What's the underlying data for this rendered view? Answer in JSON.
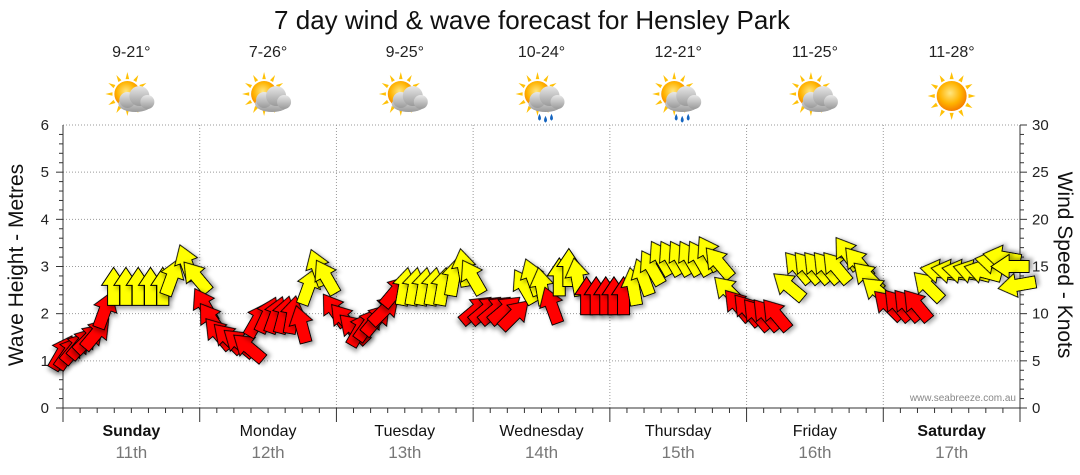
{
  "chart_data": {
    "type": "line",
    "title": "7 day wind & wave forecast for Hensley Park",
    "ylabel_left": "Wave Height - Metres",
    "ylabel_right": "Wind Speed - Knots",
    "ylim_left": [
      0,
      6
    ],
    "ylim_right": [
      0,
      30
    ],
    "yticks_left": [
      "0",
      "1",
      "2",
      "3",
      "4",
      "5",
      "6"
    ],
    "yticks_right": [
      "0",
      "5",
      "10",
      "15",
      "20",
      "25",
      "30"
    ],
    "grid": true,
    "watermark": "www.seabreeze.com.au",
    "days": [
      {
        "name": "Sunday",
        "date": "11th",
        "temp": "9-21°",
        "icon": "sun-cloud-icon",
        "bold": true
      },
      {
        "name": "Monday",
        "date": "12th",
        "temp": "7-26°",
        "icon": "sun-cloud-icon",
        "bold": false
      },
      {
        "name": "Tuesday",
        "date": "13th",
        "temp": "9-25°",
        "icon": "sun-cloud-icon",
        "bold": false
      },
      {
        "name": "Wednesday",
        "date": "14th",
        "temp": "10-24°",
        "icon": "sun-cloud-rain-icon",
        "bold": false
      },
      {
        "name": "Thursday",
        "date": "15th",
        "temp": "12-21°",
        "icon": "sun-cloud-rain-icon",
        "bold": false
      },
      {
        "name": "Friday",
        "date": "16th",
        "temp": "11-25°",
        "icon": "sun-cloud-icon",
        "bold": false
      },
      {
        "name": "Saturday",
        "date": "17th",
        "temp": "11-28°",
        "icon": "sun-icon",
        "bold": true
      }
    ],
    "series": [
      {
        "name": "Wind Speed",
        "unit": "knots",
        "color_strong": "#ffff00",
        "color_light": "#ff0000",
        "points": [
          {
            "t": 0.0,
            "speed": 6,
            "dir": 30,
            "strong": false
          },
          {
            "t": 0.05,
            "speed": 6,
            "dir": 35,
            "strong": false
          },
          {
            "t": 0.1,
            "speed": 6.5,
            "dir": 40,
            "strong": false
          },
          {
            "t": 0.15,
            "speed": 7,
            "dir": 40,
            "strong": false
          },
          {
            "t": 0.2,
            "speed": 7.5,
            "dir": 45,
            "strong": false
          },
          {
            "t": 0.25,
            "speed": 8,
            "dir": 40,
            "strong": false
          },
          {
            "t": 0.31,
            "speed": 10.5,
            "dir": 20,
            "strong": false
          },
          {
            "t": 0.37,
            "speed": 13,
            "dir": 0,
            "strong": true
          },
          {
            "t": 0.46,
            "speed": 13,
            "dir": 0,
            "strong": true
          },
          {
            "t": 0.55,
            "speed": 13,
            "dir": 0,
            "strong": true
          },
          {
            "t": 0.64,
            "speed": 13,
            "dir": 0,
            "strong": true
          },
          {
            "t": 0.73,
            "speed": 13,
            "dir": 0,
            "strong": true
          },
          {
            "t": 0.8,
            "speed": 14,
            "dir": 20,
            "strong": true
          },
          {
            "t": 0.9,
            "speed": 15.5,
            "dir": -20,
            "strong": true
          },
          {
            "t": 0.97,
            "speed": 14,
            "dir": -40,
            "strong": true
          },
          {
            "t": 1.03,
            "speed": 11,
            "dir": -30,
            "strong": false
          },
          {
            "t": 1.08,
            "speed": 9.5,
            "dir": -35,
            "strong": false
          },
          {
            "t": 1.13,
            "speed": 8,
            "dir": -40,
            "strong": false
          },
          {
            "t": 1.2,
            "speed": 7.5,
            "dir": -45,
            "strong": false
          },
          {
            "t": 1.28,
            "speed": 7,
            "dir": -50,
            "strong": false
          },
          {
            "t": 1.35,
            "speed": 6.5,
            "dir": -50,
            "strong": false
          },
          {
            "t": 1.43,
            "speed": 9.5,
            "dir": 30,
            "strong": false
          },
          {
            "t": 1.5,
            "speed": 10,
            "dir": 25,
            "strong": false
          },
          {
            "t": 1.56,
            "speed": 10,
            "dir": 20,
            "strong": false
          },
          {
            "t": 1.62,
            "speed": 10,
            "dir": 15,
            "strong": false
          },
          {
            "t": 1.68,
            "speed": 10,
            "dir": 10,
            "strong": false
          },
          {
            "t": 1.74,
            "speed": 9,
            "dir": -15,
            "strong": false
          },
          {
            "t": 1.8,
            "speed": 13,
            "dir": 20,
            "strong": true
          },
          {
            "t": 1.86,
            "speed": 15,
            "dir": -20,
            "strong": true
          },
          {
            "t": 1.92,
            "speed": 14,
            "dir": -30,
            "strong": true
          },
          {
            "t": 1.98,
            "speed": 10.5,
            "dir": -35,
            "strong": false
          },
          {
            "t": 2.05,
            "speed": 9.5,
            "dir": -40,
            "strong": false
          },
          {
            "t": 2.12,
            "speed": 8.5,
            "dir": -45,
            "strong": false
          },
          {
            "t": 2.18,
            "speed": 8.5,
            "dir": 30,
            "strong": false
          },
          {
            "t": 2.24,
            "speed": 9,
            "dir": 35,
            "strong": false
          },
          {
            "t": 2.3,
            "speed": 9.5,
            "dir": 40,
            "strong": false
          },
          {
            "t": 2.36,
            "speed": 10.5,
            "dir": 45,
            "strong": false
          },
          {
            "t": 2.44,
            "speed": 12.5,
            "dir": 40,
            "strong": false
          },
          {
            "t": 2.5,
            "speed": 13,
            "dir": 10,
            "strong": true
          },
          {
            "t": 2.57,
            "speed": 13,
            "dir": 10,
            "strong": true
          },
          {
            "t": 2.64,
            "speed": 13,
            "dir": 10,
            "strong": true
          },
          {
            "t": 2.71,
            "speed": 13,
            "dir": 10,
            "strong": true
          },
          {
            "t": 2.78,
            "speed": 13,
            "dir": 10,
            "strong": true
          },
          {
            "t": 2.86,
            "speed": 14,
            "dir": 10,
            "strong": true
          },
          {
            "t": 2.93,
            "speed": 15,
            "dir": -10,
            "strong": true
          },
          {
            "t": 2.99,
            "speed": 14,
            "dir": -30,
            "strong": true
          },
          {
            "t": 3.03,
            "speed": 10.5,
            "dir": 50,
            "strong": false
          },
          {
            "t": 3.1,
            "speed": 10.5,
            "dir": 50,
            "strong": false
          },
          {
            "t": 3.17,
            "speed": 10.5,
            "dir": 50,
            "strong": false
          },
          {
            "t": 3.24,
            "speed": 10.5,
            "dir": 50,
            "strong": false
          },
          {
            "t": 3.31,
            "speed": 10,
            "dir": 45,
            "strong": false
          },
          {
            "t": 3.37,
            "speed": 13,
            "dir": -30,
            "strong": true
          },
          {
            "t": 3.43,
            "speed": 14,
            "dir": -20,
            "strong": true
          },
          {
            "t": 3.5,
            "speed": 13,
            "dir": -10,
            "strong": true
          },
          {
            "t": 3.57,
            "speed": 11,
            "dir": -20,
            "strong": false
          },
          {
            "t": 3.63,
            "speed": 14,
            "dir": 0,
            "strong": true
          },
          {
            "t": 3.7,
            "speed": 15,
            "dir": 0,
            "strong": true
          },
          {
            "t": 3.76,
            "speed": 14,
            "dir": -10,
            "strong": true
          },
          {
            "t": 3.83,
            "speed": 12,
            "dir": 0,
            "strong": false
          },
          {
            "t": 3.9,
            "speed": 12,
            "dir": 0,
            "strong": false
          },
          {
            "t": 3.97,
            "speed": 12,
            "dir": 0,
            "strong": false
          },
          {
            "t": 4.03,
            "speed": 12,
            "dir": 0,
            "strong": false
          },
          {
            "t": 4.1,
            "speed": 12,
            "dir": 0,
            "strong": false
          },
          {
            "t": 4.17,
            "speed": 13,
            "dir": -10,
            "strong": true
          },
          {
            "t": 4.24,
            "speed": 14,
            "dir": -20,
            "strong": true
          },
          {
            "t": 4.3,
            "speed": 15,
            "dir": -30,
            "strong": true
          },
          {
            "t": 4.37,
            "speed": 16,
            "dir": -30,
            "strong": true
          },
          {
            "t": 4.44,
            "speed": 16,
            "dir": -30,
            "strong": true
          },
          {
            "t": 4.51,
            "speed": 16,
            "dir": -30,
            "strong": true
          },
          {
            "t": 4.58,
            "speed": 16,
            "dir": -30,
            "strong": true
          },
          {
            "t": 4.65,
            "speed": 16,
            "dir": -30,
            "strong": true
          },
          {
            "t": 4.72,
            "speed": 16.5,
            "dir": -30,
            "strong": true
          },
          {
            "t": 4.79,
            "speed": 15.5,
            "dir": -40,
            "strong": true
          },
          {
            "t": 4.86,
            "speed": 12.5,
            "dir": -45,
            "strong": true
          },
          {
            "t": 4.93,
            "speed": 11,
            "dir": -40,
            "strong": false
          },
          {
            "t": 5.0,
            "speed": 10.5,
            "dir": -40,
            "strong": false
          },
          {
            "t": 5.07,
            "speed": 10,
            "dir": -40,
            "strong": false
          },
          {
            "t": 5.14,
            "speed": 10,
            "dir": -40,
            "strong": false
          },
          {
            "t": 5.21,
            "speed": 10,
            "dir": -40,
            "strong": false
          },
          {
            "t": 5.3,
            "speed": 13,
            "dir": -50,
            "strong": true
          },
          {
            "t": 5.37,
            "speed": 15,
            "dir": -40,
            "strong": true
          },
          {
            "t": 5.44,
            "speed": 15,
            "dir": -40,
            "strong": true
          },
          {
            "t": 5.51,
            "speed": 15,
            "dir": -40,
            "strong": true
          },
          {
            "t": 5.58,
            "speed": 15,
            "dir": -40,
            "strong": true
          },
          {
            "t": 5.65,
            "speed": 15,
            "dir": -40,
            "strong": true
          },
          {
            "t": 5.73,
            "speed": 16.5,
            "dir": -35,
            "strong": true
          },
          {
            "t": 5.81,
            "speed": 15.5,
            "dir": -40,
            "strong": true
          },
          {
            "t": 5.88,
            "speed": 14,
            "dir": -45,
            "strong": true
          },
          {
            "t": 5.95,
            "speed": 12.5,
            "dir": -50,
            "strong": true
          },
          {
            "t": 6.03,
            "speed": 11,
            "dir": -45,
            "strong": false
          },
          {
            "t": 6.1,
            "speed": 11,
            "dir": -40,
            "strong": false
          },
          {
            "t": 6.17,
            "speed": 11,
            "dir": -40,
            "strong": false
          },
          {
            "t": 6.24,
            "speed": 11,
            "dir": -40,
            "strong": false
          },
          {
            "t": 6.32,
            "speed": 13,
            "dir": -45,
            "strong": true
          },
          {
            "t": 6.4,
            "speed": 14.5,
            "dir": -80,
            "strong": true
          },
          {
            "t": 6.48,
            "speed": 14.5,
            "dir": -80,
            "strong": true
          },
          {
            "t": 6.56,
            "speed": 14.5,
            "dir": -80,
            "strong": true
          },
          {
            "t": 6.64,
            "speed": 14.5,
            "dir": -75,
            "strong": true
          },
          {
            "t": 6.72,
            "speed": 14.5,
            "dir": -75,
            "strong": true
          },
          {
            "t": 6.8,
            "speed": 15.5,
            "dir": -80,
            "strong": true
          },
          {
            "t": 6.86,
            "speed": 16,
            "dir": -80,
            "strong": true
          },
          {
            "t": 6.92,
            "speed": 15,
            "dir": -90,
            "strong": true
          },
          {
            "t": 6.97,
            "speed": 13,
            "dir": -100,
            "strong": true
          }
        ]
      }
    ]
  }
}
